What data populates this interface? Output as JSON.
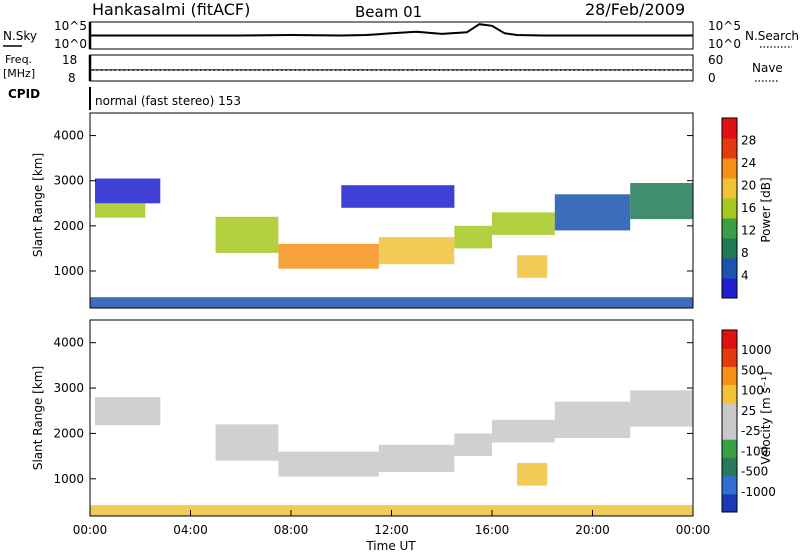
{
  "header": {
    "station": "Hankasalmi (fitACF)",
    "beam": "Beam 01",
    "date": "28/Feb/2009"
  },
  "left_labels": {
    "nsky": "N.Sky",
    "freq": "Freq.",
    "freq_unit": "[MHz]",
    "cpid": "CPID"
  },
  "right_labels": {
    "nsearch": "N.Search",
    "nave": "Nave"
  },
  "cpid_text": "normal (fast stereo) 153",
  "chart_data": [
    {
      "type": "line",
      "name": "noise panel",
      "left_ticks": [
        "10^5",
        "10^0"
      ],
      "right_ticks": [
        "10^5",
        "10^0"
      ],
      "nsky_series": {
        "x_hours": [
          0,
          2,
          4,
          6,
          8,
          10,
          11,
          12,
          13,
          14,
          15,
          15.5,
          16,
          16.5,
          17,
          18,
          20,
          22,
          24
        ],
        "log_value": [
          2.5,
          2.5,
          2.5,
          2.5,
          2.6,
          2.5,
          2.6,
          2.9,
          3.2,
          2.8,
          3.1,
          4.6,
          4.3,
          2.9,
          2.6,
          2.5,
          2.5,
          2.5,
          2.5
        ]
      }
    },
    {
      "type": "line",
      "name": "frequency panel",
      "left_ticks": [
        "18",
        "8"
      ],
      "right_ticks": [
        "60",
        "0"
      ],
      "freq_mhz": 12.2,
      "nave": 35
    },
    {
      "type": "heatmap",
      "xlabel": "Time UT",
      "ylabel": "Slant Range [km]",
      "x_ticks": [
        "00:00",
        "04:00",
        "08:00",
        "12:00",
        "16:00",
        "20:00",
        "00:00"
      ],
      "y_ticks": [
        1000,
        2000,
        3000,
        4000
      ],
      "xlim_hours": [
        0,
        24
      ],
      "ylim_km": [
        180,
        4500
      ],
      "colorbar_label": "Power [dB]",
      "colorbar_ticks": [
        4,
        8,
        12,
        16,
        20,
        24,
        28
      ],
      "colors": [
        "#1f1fcf",
        "#1a53b0",
        "#1f7a55",
        "#3aa043",
        "#a6c81e",
        "#f0c23a",
        "#f59018",
        "#e43a0f",
        "#e11111"
      ],
      "bands": [
        {
          "x0": 0.2,
          "x1": 2.2,
          "y0": 2180,
          "y1": 2500,
          "level": 0.45
        },
        {
          "x0": 0.2,
          "x1": 2.8,
          "y0": 2500,
          "y1": 3050,
          "level": 0.05
        },
        {
          "x0": 5.0,
          "x1": 7.5,
          "y0": 1400,
          "y1": 2200,
          "level": 0.55
        },
        {
          "x0": 7.5,
          "x1": 11.5,
          "y0": 1050,
          "y1": 1600,
          "level": 0.75
        },
        {
          "x0": 11.5,
          "x1": 14.5,
          "y0": 1150,
          "y1": 1750,
          "level": 0.62
        },
        {
          "x0": 14.5,
          "x1": 16.0,
          "y0": 1500,
          "y1": 2000,
          "level": 0.5
        },
        {
          "x0": 16.0,
          "x1": 18.5,
          "y0": 1800,
          "y1": 2300,
          "level": 0.45
        },
        {
          "x0": 17.0,
          "x1": 18.2,
          "y0": 850,
          "y1": 1350,
          "level": 0.6
        },
        {
          "x0": 18.5,
          "x1": 21.5,
          "y0": 1900,
          "y1": 2700,
          "level": 0.15
        },
        {
          "x0": 21.5,
          "x1": 24.0,
          "y0": 2150,
          "y1": 2950,
          "level": 0.25
        },
        {
          "x0": 10.0,
          "x1": 14.5,
          "y0": 2400,
          "y1": 2900,
          "level": 0.05
        },
        {
          "x0": 0.0,
          "x1": 24.0,
          "y0": 180,
          "y1": 420,
          "level": 0.15
        }
      ]
    },
    {
      "type": "heatmap",
      "xlabel": "Time UT",
      "ylabel": "Slant Range [km]",
      "x_ticks": [
        "00:00",
        "04:00",
        "08:00",
        "12:00",
        "16:00",
        "20:00",
        "00:00"
      ],
      "y_ticks": [
        1000,
        2000,
        3000,
        4000
      ],
      "xlim_hours": [
        0,
        24
      ],
      "ylim_km": [
        180,
        4500
      ],
      "colorbar_label": "Velocity [m s⁻¹]",
      "colorbar_ticks": [
        1000,
        500,
        100,
        25,
        -25,
        -100,
        -500,
        -1000
      ],
      "colors": [
        "#1a3ab8",
        "#2e6fd0",
        "#2a7a5a",
        "#3aa043",
        "#c8c8c8",
        "#c8c8c8",
        "#f0c23a",
        "#f59018",
        "#e43a0f",
        "#e11111"
      ],
      "bands": [
        {
          "x0": 0.2,
          "x1": 2.8,
          "y0": 2180,
          "y1": 2800,
          "level": 0.45
        },
        {
          "x0": 5.0,
          "x1": 7.5,
          "y0": 1400,
          "y1": 2200,
          "level": 0.45
        },
        {
          "x0": 7.5,
          "x1": 11.5,
          "y0": 1050,
          "y1": 1600,
          "level": 0.45
        },
        {
          "x0": 11.5,
          "x1": 14.5,
          "y0": 1150,
          "y1": 1750,
          "level": 0.45
        },
        {
          "x0": 14.5,
          "x1": 16.0,
          "y0": 1500,
          "y1": 2000,
          "level": 0.45
        },
        {
          "x0": 16.0,
          "x1": 18.5,
          "y0": 1800,
          "y1": 2300,
          "level": 0.45
        },
        {
          "x0": 17.0,
          "x1": 18.2,
          "y0": 850,
          "y1": 1350,
          "level": 0.65
        },
        {
          "x0": 18.5,
          "x1": 21.5,
          "y0": 1900,
          "y1": 2700,
          "level": 0.45
        },
        {
          "x0": 21.5,
          "x1": 24.0,
          "y0": 2150,
          "y1": 2950,
          "level": 0.45
        },
        {
          "x0": 0.0,
          "x1": 24.0,
          "y0": 180,
          "y1": 420,
          "level": 0.6
        }
      ]
    }
  ]
}
